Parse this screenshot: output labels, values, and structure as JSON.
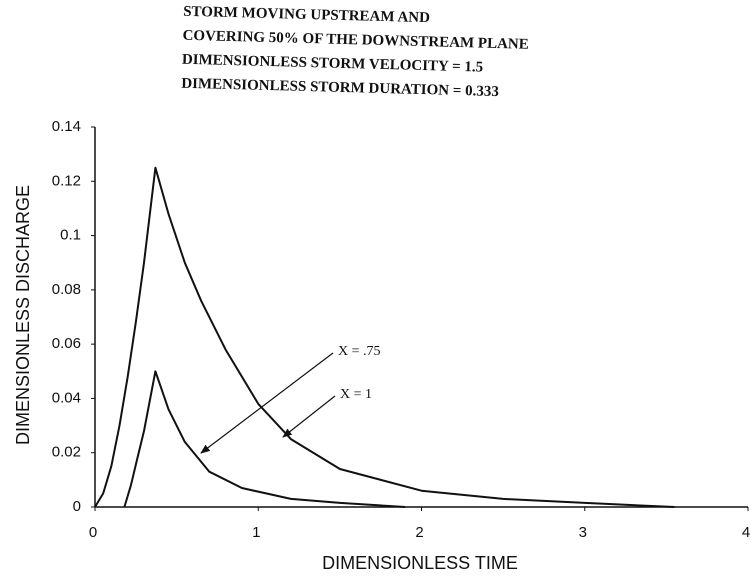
{
  "chart_data": {
    "type": "line",
    "title": [
      "STORM MOVING UPSTREAM AND",
      "COVERING 50% OF THE DOWNSTREAM PLANE",
      "DIMENSIONLESS STORM VELOCITY = 1.5",
      "DIMENSIONLESS STORM DURATION = 0.333"
    ],
    "x_label": "DIMENSIONLESS TIME",
    "y_label": "DIMENSIONLESS DISCHARGE",
    "xlim": [
      0,
      4
    ],
    "xticks": [
      0,
      1,
      2,
      3,
      4
    ],
    "ylim": [
      0,
      0.14
    ],
    "yticks": [
      0,
      0.02,
      0.04,
      0.06,
      0.08,
      0.1,
      0.12,
      0.14
    ],
    "series": [
      {
        "name": "X = 1",
        "color": "#111111",
        "x": [
          0,
          0.05,
          0.1,
          0.15,
          0.2,
          0.25,
          0.3,
          0.37,
          0.45,
          0.55,
          0.65,
          0.8,
          1.0,
          1.2,
          1.5,
          2.0,
          2.5,
          3.0,
          3.55
        ],
        "values": [
          0,
          0.005,
          0.015,
          0.03,
          0.048,
          0.068,
          0.09,
          0.125,
          0.108,
          0.09,
          0.076,
          0.058,
          0.038,
          0.025,
          0.014,
          0.006,
          0.003,
          0.0015,
          0
        ]
      },
      {
        "name": "X = .75",
        "color": "#111111",
        "x": [
          0.18,
          0.22,
          0.26,
          0.3,
          0.37,
          0.45,
          0.55,
          0.7,
          0.9,
          1.2,
          1.5,
          1.9
        ],
        "values": [
          0,
          0.008,
          0.018,
          0.028,
          0.05,
          0.036,
          0.024,
          0.013,
          0.007,
          0.003,
          0.0015,
          0
        ]
      }
    ]
  }
}
